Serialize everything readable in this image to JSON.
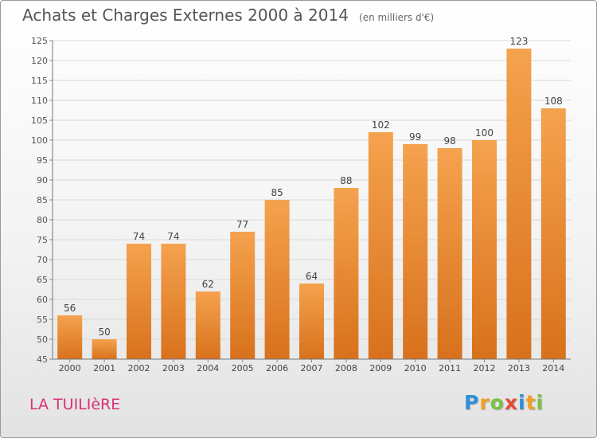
{
  "chart_data": {
    "type": "bar",
    "title": "Achats et Charges Externes 2000 à 2014",
    "unit_note": "(en milliers d'€)",
    "categories": [
      "2000",
      "2001",
      "2002",
      "2003",
      "2004",
      "2005",
      "2006",
      "2007",
      "2008",
      "2009",
      "2010",
      "2011",
      "2012",
      "2013",
      "2014"
    ],
    "values": [
      56,
      50,
      74,
      74,
      62,
      77,
      85,
      64,
      88,
      102,
      99,
      98,
      100,
      123,
      108
    ],
    "ylim": [
      45,
      125
    ],
    "yticks": [
      45,
      50,
      55,
      60,
      65,
      70,
      75,
      80,
      85,
      90,
      95,
      100,
      105,
      110,
      115,
      120,
      125
    ],
    "grid": true,
    "bar_color_top": "#f5a24e",
    "bar_color_bottom": "#d8711c"
  },
  "footer": {
    "place": "LA TUILIèRE",
    "logo_letters": [
      {
        "ch": "P",
        "color": "#2f8fd8"
      },
      {
        "ch": "r",
        "color": "#f0a020"
      },
      {
        "ch": "o",
        "color": "#7cc242"
      },
      {
        "ch": "x",
        "color": "#e84a3a"
      },
      {
        "ch": "i",
        "color": "#2f8fd8"
      },
      {
        "ch": "t",
        "color": "#f0a020"
      },
      {
        "ch": "i",
        "color": "#7cc242"
      }
    ]
  }
}
